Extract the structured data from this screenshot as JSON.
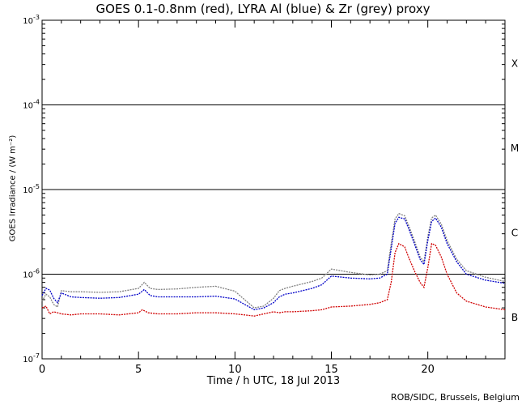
{
  "chart_data": {
    "type": "line",
    "title": "GOES 0.1-0.8nm (red), LYRA Al (blue) & Zr (grey) proxy",
    "xlabel": "Time / h UTC, 18 Jul 2013",
    "ylabel": "GOES Irradiance / (W m⁻²)",
    "credit": "ROB/SIDC, Brussels, Belgium",
    "xlim": [
      0,
      24
    ],
    "ylim": [
      1e-07,
      0.001
    ],
    "yscale": "log",
    "xticks": [
      "0",
      "5",
      "10",
      "15",
      "20"
    ],
    "yticks": [
      {
        "base": "10",
        "exp": "-7"
      },
      {
        "base": "10",
        "exp": "-6"
      },
      {
        "base": "10",
        "exp": "-5"
      },
      {
        "base": "10",
        "exp": "-4"
      },
      {
        "base": "10",
        "exp": "-3"
      }
    ],
    "flare_classes": [
      "B",
      "C",
      "M",
      "X"
    ],
    "class_lines": [
      1e-06,
      1e-05,
      0.0001
    ],
    "series": [
      {
        "name": "GOES 0.1-0.8nm",
        "color": "#d00000",
        "x": [
          0,
          0.2,
          0.4,
          0.6,
          0.8,
          1.0,
          1.5,
          2.0,
          3.0,
          4.0,
          5.0,
          5.2,
          5.5,
          6.0,
          7.0,
          8.0,
          9.0,
          10.0,
          10.5,
          11.0,
          11.5,
          12.0,
          12.3,
          12.6,
          13.0,
          14.0,
          14.5,
          15.0,
          16.0,
          17.0,
          17.5,
          17.9,
          18.1,
          18.3,
          18.5,
          18.8,
          19.0,
          19.3,
          19.6,
          19.8,
          20.0,
          20.2,
          20.4,
          20.7,
          21.0,
          21.5,
          22.0,
          23.0,
          24.0
        ],
        "y": [
          4e-07,
          4.2e-07,
          3.4e-07,
          3.6e-07,
          3.5e-07,
          3.4e-07,
          3.3e-07,
          3.4e-07,
          3.4e-07,
          3.3e-07,
          3.5e-07,
          3.8e-07,
          3.5e-07,
          3.4e-07,
          3.4e-07,
          3.5e-07,
          3.5e-07,
          3.4e-07,
          3.3e-07,
          3.2e-07,
          3.4e-07,
          3.6e-07,
          3.5e-07,
          3.6e-07,
          3.6e-07,
          3.7e-07,
          3.8e-07,
          4.1e-07,
          4.2e-07,
          4.4e-07,
          4.6e-07,
          5e-07,
          8e-07,
          1.8e-06,
          2.3e-06,
          2.1e-06,
          1.6e-06,
          1.1e-06,
          8e-07,
          7e-07,
          1.2e-06,
          2.3e-06,
          2.2e-06,
          1.6e-06,
          1e-06,
          6e-07,
          4.8e-07,
          4.1e-07,
          3.8e-07
        ]
      },
      {
        "name": "LYRA Al",
        "color": "#0000c8",
        "x": [
          0,
          0.2,
          0.4,
          0.6,
          0.8,
          1.0,
          1.5,
          2.0,
          3.0,
          4.0,
          5.0,
          5.3,
          5.6,
          6.0,
          7.0,
          8.0,
          9.0,
          10.0,
          10.5,
          11.0,
          11.5,
          12.0,
          12.3,
          12.6,
          13.0,
          14.0,
          14.5,
          15.0,
          16.0,
          17.0,
          17.5,
          17.9,
          18.1,
          18.3,
          18.5,
          18.8,
          19.0,
          19.3,
          19.6,
          19.8,
          20.0,
          20.2,
          20.4,
          20.7,
          21.0,
          21.5,
          22.0,
          23.0,
          24.0
        ],
        "y": [
          5.6e-07,
          6.8e-07,
          6.5e-07,
          5.2e-07,
          4.6e-07,
          6e-07,
          5.4e-07,
          5.3e-07,
          5.2e-07,
          5.3e-07,
          5.8e-07,
          6.6e-07,
          5.6e-07,
          5.4e-07,
          5.4e-07,
          5.4e-07,
          5.5e-07,
          5.1e-07,
          4.4e-07,
          3.8e-07,
          4e-07,
          4.6e-07,
          5.4e-07,
          5.8e-07,
          6e-07,
          6.8e-07,
          7.5e-07,
          9.5e-07,
          9e-07,
          8.8e-07,
          9e-07,
          1e-06,
          2e-06,
          4e-06,
          4.7e-06,
          4.5e-06,
          3.5e-06,
          2.3e-06,
          1.5e-06,
          1.3e-06,
          2.5e-06,
          4.2e-06,
          4.6e-06,
          3.6e-06,
          2.3e-06,
          1.4e-06,
          1e-06,
          8.5e-07,
          7.8e-07
        ]
      },
      {
        "name": "LYRA Zr",
        "color": "#808080",
        "x": [
          0,
          0.2,
          0.4,
          0.6,
          0.8,
          1.0,
          1.5,
          2.0,
          3.0,
          4.0,
          5.0,
          5.3,
          5.6,
          6.0,
          7.0,
          8.0,
          9.0,
          10.0,
          10.5,
          11.0,
          11.5,
          12.0,
          12.3,
          12.6,
          13.0,
          14.0,
          14.5,
          15.0,
          16.0,
          17.0,
          17.5,
          17.9,
          18.1,
          18.3,
          18.5,
          18.8,
          19.0,
          19.3,
          19.6,
          19.8,
          20.0,
          20.2,
          20.4,
          20.7,
          21.0,
          21.5,
          22.0,
          23.0,
          24.0
        ],
        "y": [
          4.8e-07,
          5.8e-07,
          5.4e-07,
          4.4e-07,
          4.1e-07,
          6.4e-07,
          6.2e-07,
          6.2e-07,
          6.1e-07,
          6.2e-07,
          6.8e-07,
          8e-07,
          6.8e-07,
          6.6e-07,
          6.7e-07,
          7e-07,
          7.2e-07,
          6.3e-07,
          5e-07,
          4e-07,
          4.2e-07,
          5.2e-07,
          6.4e-07,
          6.8e-07,
          7.2e-07,
          8.2e-07,
          9e-07,
          1.15e-06,
          1.05e-06,
          9.8e-07,
          1e-06,
          1.1e-06,
          2.3e-06,
          4.5e-06,
          5.2e-06,
          4.9e-06,
          3.8e-06,
          2.5e-06,
          1.6e-06,
          1.4e-06,
          2.8e-06,
          4.6e-06,
          5e-06,
          3.9e-06,
          2.5e-06,
          1.5e-06,
          1.1e-06,
          9.2e-07,
          8.2e-07
        ]
      }
    ]
  }
}
